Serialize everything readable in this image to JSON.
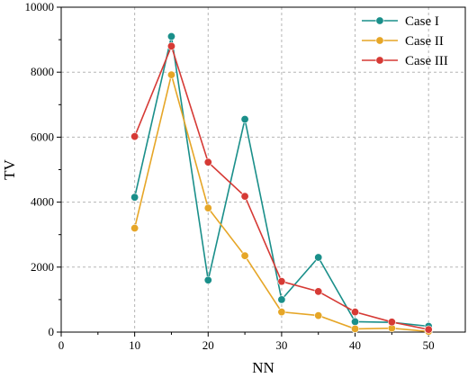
{
  "chart_data": {
    "type": "line",
    "xlabel": "NN",
    "ylabel": "TV",
    "xlim": [
      0,
      55
    ],
    "ylim": [
      0,
      10000
    ],
    "xticks": [
      0,
      10,
      20,
      30,
      40,
      50
    ],
    "yticks": [
      0,
      2000,
      4000,
      6000,
      8000,
      10000
    ],
    "grid": true,
    "legend_position": "top-right",
    "x": [
      10,
      15,
      20,
      25,
      30,
      35,
      40,
      45,
      50
    ],
    "series": [
      {
        "name": "Case I",
        "color": "#1a8f8a",
        "values": [
          4150,
          9100,
          1600,
          6550,
          1000,
          2300,
          320,
          300,
          180
        ]
      },
      {
        "name": "Case II",
        "color": "#e6a627",
        "values": [
          3200,
          7920,
          3820,
          2350,
          620,
          510,
          100,
          120,
          20
        ]
      },
      {
        "name": "Case III",
        "color": "#d63a35",
        "values": [
          6020,
          8800,
          5230,
          4180,
          1560,
          1250,
          620,
          310,
          80
        ]
      }
    ]
  }
}
